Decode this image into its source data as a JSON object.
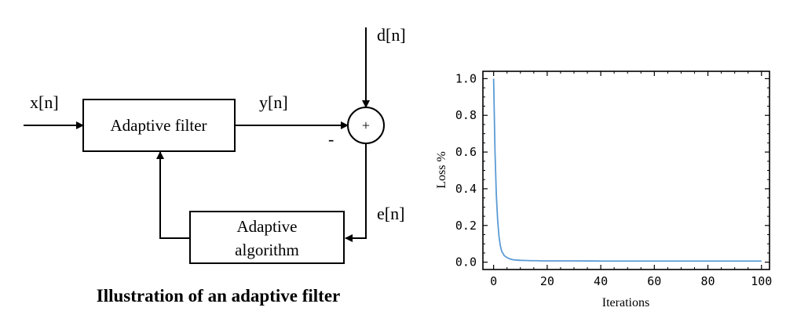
{
  "diagram": {
    "input_label": "x[n]",
    "desired_label": "d[n]",
    "output_label": "y[n]",
    "error_label": "e[n]",
    "minus_sign": "-",
    "sum_symbol": "+",
    "filter_box_label": "Adaptive filter",
    "algorithm_box_line1": "Adaptive",
    "algorithm_box_line2": "algorithm",
    "caption": "Illustration of an adaptive filter"
  },
  "chart_data": {
    "type": "line",
    "title": "",
    "xlabel": "Iterations",
    "ylabel": "Loss %",
    "xlim": [
      -4,
      103
    ],
    "ylim": [
      -0.04,
      1.04
    ],
    "xticks": [
      0,
      20,
      40,
      60,
      80,
      100
    ],
    "yticks": [
      0.0,
      0.2,
      0.4,
      0.6,
      0.8,
      1.0
    ],
    "grid": false,
    "line_color": "#5b9bd5",
    "series": [
      {
        "x": [
          0,
          0.5,
          1,
          1.5,
          2,
          2.5,
          3,
          4,
          5,
          6,
          7,
          8,
          9,
          10,
          12,
          14,
          16,
          18,
          20,
          30,
          40,
          50,
          60,
          70,
          80,
          90,
          100
        ],
        "values": [
          1.0,
          0.61,
          0.37,
          0.23,
          0.14,
          0.09,
          0.06,
          0.035,
          0.025,
          0.018,
          0.014,
          0.012,
          0.011,
          0.01,
          0.009,
          0.008,
          0.008,
          0.007,
          0.007,
          0.007,
          0.006,
          0.006,
          0.006,
          0.006,
          0.006,
          0.006,
          0.006
        ]
      }
    ]
  }
}
